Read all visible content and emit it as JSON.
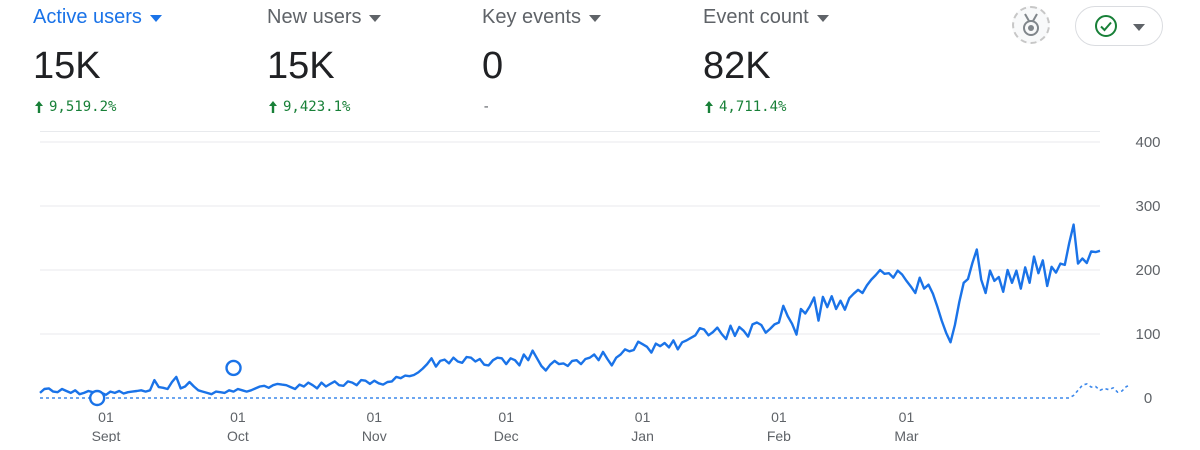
{
  "metrics": [
    {
      "label": "Active users",
      "value": "15K",
      "change": "9,519.2%",
      "trend": "up"
    },
    {
      "label": "New users",
      "value": "15K",
      "change": "9,423.1%",
      "trend": "up"
    },
    {
      "label": "Key events",
      "value": "0",
      "change": "-",
      "trend": "none"
    },
    {
      "label": "Event count",
      "value": "82K",
      "change": "4,711.4%",
      "trend": "up"
    }
  ],
  "toolbar": {
    "badge_icon": "award-badge-icon",
    "status_icon": "check-circle-icon"
  },
  "colors": {
    "accent": "#1a73e8",
    "positive": "#188038",
    "grid": "#e8eaed",
    "axis_text": "#5f6368"
  },
  "chart_data": {
    "type": "line",
    "title": "",
    "xlabel": "",
    "ylabel": "",
    "ylim": [
      0,
      400
    ],
    "yticks": [
      "0",
      "100",
      "200",
      "300",
      "400"
    ],
    "xticks": [
      {
        "day": "01",
        "month": "Sept"
      },
      {
        "day": "01",
        "month": "Oct"
      },
      {
        "day": "01",
        "month": "Nov"
      },
      {
        "day": "01",
        "month": "Dec"
      },
      {
        "day": "01",
        "month": "Jan"
      },
      {
        "day": "01",
        "month": "Feb"
      },
      {
        "day": "01",
        "month": "Mar"
      }
    ],
    "grid": true,
    "legend": "none",
    "x_start": "2023-08-17",
    "series": [
      {
        "style": "solid",
        "values": [
          8,
          14,
          15,
          10,
          9,
          14,
          11,
          8,
          12,
          6,
          8,
          11,
          9,
          10,
          8,
          5,
          10,
          8,
          11,
          7,
          9,
          10,
          11,
          12,
          10,
          12,
          28,
          17,
          16,
          14,
          25,
          33,
          15,
          18,
          25,
          18,
          12,
          10,
          8,
          6,
          10,
          9,
          8,
          12,
          10,
          14,
          12,
          10,
          12,
          15,
          18,
          19,
          16,
          20,
          22,
          21,
          20,
          17,
          14,
          21,
          18,
          24,
          20,
          15,
          24,
          18,
          22,
          26,
          20,
          19,
          26,
          24,
          20,
          28,
          27,
          22,
          27,
          23,
          21,
          25,
          26,
          33,
          31,
          35,
          34,
          36,
          40,
          46,
          53,
          62,
          49,
          58,
          60,
          54,
          63,
          57,
          55,
          64,
          63,
          57,
          61,
          52,
          51,
          59,
          63,
          62,
          53,
          62,
          59,
          51,
          68,
          59,
          74,
          62,
          50,
          43,
          52,
          58,
          53,
          54,
          50,
          58,
          59,
          53,
          61,
          63,
          68,
          59,
          72,
          61,
          51,
          63,
          68,
          76,
          73,
          75,
          88,
          84,
          80,
          71,
          85,
          81,
          86,
          79,
          90,
          76,
          87,
          90,
          94,
          98,
          109,
          107,
          98,
          103,
          110,
          100,
          92,
          113,
          97,
          111,
          105,
          96,
          115,
          118,
          114,
          102,
          108,
          115,
          118,
          144,
          128,
          116,
          99,
          139,
          132,
          143,
          157,
          121,
          158,
          142,
          159,
          139,
          152,
          138,
          156,
          163,
          169,
          164,
          176,
          185,
          192,
          200,
          194,
          195,
          188,
          199,
          193,
          183,
          174,
          164,
          188,
          171,
          177,
          163,
          143,
          121,
          102,
          87,
          114,
          150,
          180,
          186,
          211,
          232,
          185,
          164,
          199,
          183,
          189,
          166,
          200,
          180,
          199,
          171,
          204,
          180,
          221,
          195,
          215,
          175,
          205,
          196,
          210,
          208,
          242,
          271,
          210,
          218,
          211,
          229,
          228,
          230
        ],
        "markers": [
          {
            "index": 13,
            "value": 0
          },
          {
            "index": 44,
            "value": 47
          }
        ]
      },
      {
        "style": "dashed",
        "values": [
          0,
          0,
          0,
          0,
          0,
          0,
          0,
          0,
          0,
          0,
          0,
          0,
          0,
          0,
          0,
          0,
          0,
          0,
          0,
          0,
          0,
          0,
          0,
          0,
          0,
          0,
          0,
          0,
          0,
          0,
          0,
          0,
          0,
          0,
          0,
          0,
          0,
          0,
          0,
          0,
          0,
          0,
          0,
          0,
          0,
          0,
          0,
          0,
          0,
          0,
          0,
          0,
          0,
          0,
          0,
          0,
          0,
          0,
          0,
          0,
          0,
          0,
          0,
          0,
          0,
          0,
          0,
          0,
          0,
          0,
          0,
          0,
          0,
          0,
          0,
          0,
          0,
          0,
          0,
          0,
          0,
          0,
          0,
          0,
          0,
          0,
          0,
          0,
          0,
          0,
          0,
          0,
          0,
          0,
          0,
          0,
          0,
          0,
          0,
          0,
          0,
          0,
          0,
          0,
          0,
          0,
          0,
          0,
          0,
          0,
          0,
          0,
          0,
          0,
          0,
          0,
          0,
          0,
          0,
          0,
          0,
          0,
          0,
          0,
          0,
          0,
          0,
          0,
          0,
          0,
          0,
          0,
          0,
          0,
          0,
          0,
          0,
          0,
          0,
          0,
          0,
          0,
          0,
          0,
          0,
          0,
          0,
          0,
          0,
          0,
          0,
          0,
          0,
          0,
          0,
          0,
          0,
          0,
          0,
          0,
          0,
          0,
          0,
          0,
          0,
          0,
          0,
          0,
          0,
          0,
          0,
          0,
          0,
          0,
          0,
          0,
          0,
          0,
          0,
          0,
          0,
          0,
          0,
          0,
          0,
          0,
          0,
          0,
          0,
          0,
          0,
          0,
          0,
          0,
          0,
          0,
          0,
          0,
          0,
          0,
          0,
          0,
          0,
          0,
          0,
          0,
          0,
          0,
          0,
          0,
          0,
          0,
          0,
          0,
          0,
          0,
          0,
          0,
          0,
          0,
          0,
          0,
          0,
          0,
          0,
          0,
          0,
          0,
          0,
          0,
          0,
          0,
          0,
          0,
          0,
          4,
          12,
          20,
          22,
          17,
          18,
          12,
          15,
          13,
          16,
          9,
          11,
          18,
          20
        ]
      }
    ]
  }
}
